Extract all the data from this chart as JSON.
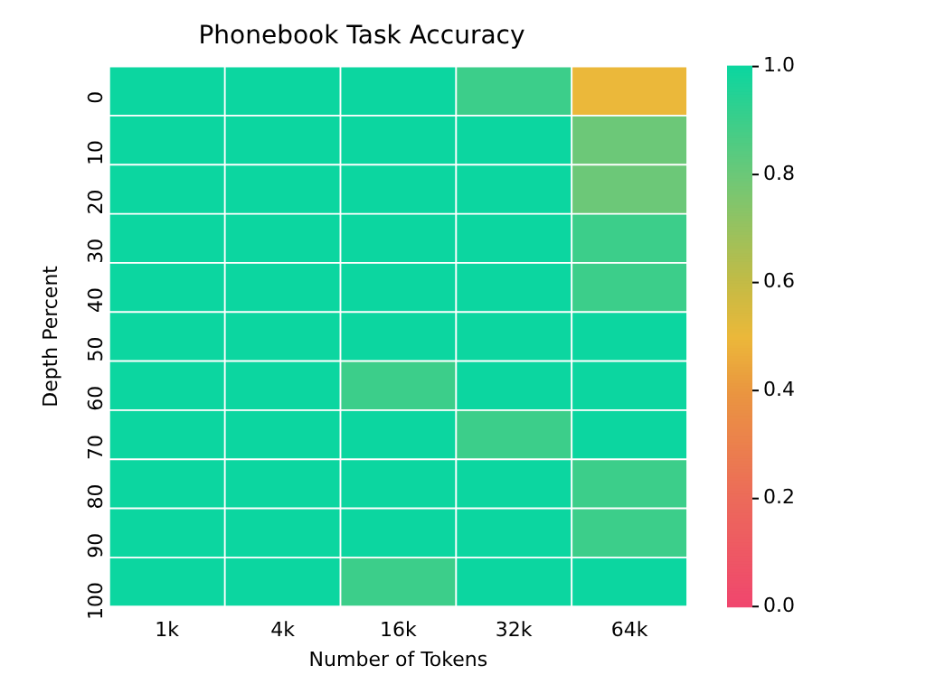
{
  "chart_data": {
    "type": "heatmap",
    "title": "Phonebook Task Accuracy",
    "xlabel": "Number of Tokens",
    "ylabel": "Depth Percent",
    "categories": [
      "1k",
      "4k",
      "16k",
      "32k",
      "64k"
    ],
    "y_categories": [
      "0",
      "10",
      "20",
      "30",
      "40",
      "50",
      "60",
      "70",
      "80",
      "90",
      "100"
    ],
    "cells": [
      [
        1,
        1,
        1,
        0.9,
        0.5
      ],
      [
        1,
        1,
        1,
        1,
        0.8
      ],
      [
        1,
        1,
        1,
        1,
        0.8
      ],
      [
        1,
        1,
        1,
        1,
        0.9
      ],
      [
        1,
        1,
        1,
        1,
        0.9
      ],
      [
        1,
        1,
        1,
        1,
        1
      ],
      [
        1,
        1,
        0.9,
        1,
        1
      ],
      [
        1,
        1,
        1,
        0.9,
        1
      ],
      [
        1,
        1,
        1,
        1,
        0.9
      ],
      [
        1,
        1,
        1,
        1,
        0.9
      ],
      [
        1,
        1,
        0.9,
        1,
        1
      ]
    ],
    "clim": [
      0,
      1
    ],
    "cticks": [
      {
        "value": 0,
        "label": "0.0"
      },
      {
        "value": 0.2,
        "label": "0.2"
      },
      {
        "value": 0.4,
        "label": "0.4"
      },
      {
        "value": 0.6,
        "label": "0.6"
      },
      {
        "value": 0.8,
        "label": "0.8"
      },
      {
        "value": 1,
        "label": "1.0"
      }
    ]
  }
}
